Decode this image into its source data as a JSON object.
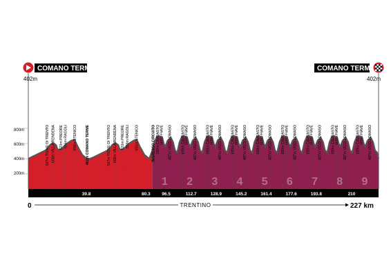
{
  "start": {
    "name": "COMANO TERME",
    "elevation": "402m"
  },
  "finish": {
    "name": "COMANO TERME",
    "elevation": "402m"
  },
  "y_axis": [
    "800m",
    "600m",
    "400m",
    "200m"
  ],
  "region": "TRENTINO",
  "distance_start": "0",
  "distance_total": "227 km",
  "segment_km": [
    "39.8",
    "80.3",
    "96.5",
    "112.7",
    "128.9",
    "145.2",
    "161.4",
    "177.6",
    "193.8",
    "210"
  ],
  "laps": [
    "1",
    "2",
    "3",
    "4",
    "5",
    "6",
    "7",
    "8",
    "9"
  ],
  "colors": {
    "first_part": "#d41e2a",
    "circuit": "#8e1f4e",
    "crest": "#555555",
    "bar": "#000000"
  },
  "loop1_labels": [
    {
      "text": "567m TIONE DI TRENTO",
      "km": 12
    },
    {
      "text": "608m VILLA RENDENA",
      "km": 16
    },
    {
      "text": "523m PREORE",
      "km": 21
    },
    {
      "text": "556m RAGOLI",
      "km": 24
    },
    {
      "text": "656m STENICO",
      "km": 30
    },
    {
      "text": "402m COMANO TERME",
      "km": 38,
      "bold": true
    }
  ],
  "loop2_labels": [
    {
      "text": "567m TIONE DI TRENTO",
      "km": 52
    },
    {
      "text": "608m VILLA RENDENA",
      "km": 56
    },
    {
      "text": "523m PREORE",
      "km": 61
    },
    {
      "text": "556m RAGOLI",
      "km": 64
    },
    {
      "text": "656m STENICO",
      "km": 70
    }
  ],
  "circuit_entry": {
    "text": "INGRESSO CIRCUITO",
    "km": 80.3
  },
  "lap_label_texts": [
    "699m CAVRASTO",
    "669m FIAVE",
    "487m VIGO LOMASO"
  ]
}
